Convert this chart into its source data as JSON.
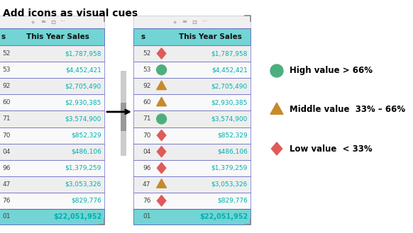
{
  "title": "Add icons as visual cues",
  "title_fontsize": 10,
  "bg_color": "#ffffff",
  "header_bg": "#72d4d4",
  "header_text": "This Year Sales",
  "col_label": "s",
  "row_nums_left": [
    "52",
    "53",
    "92",
    "60",
    "71",
    "70",
    "04",
    "96",
    "47",
    "76",
    "01"
  ],
  "row_nums_right": [
    "52",
    "53",
    "92",
    "60",
    "71",
    "70",
    "04",
    "96",
    "47",
    "76",
    "01"
  ],
  "values": [
    "$1,787,958",
    "$4,452,421",
    "$2,705,490",
    "$2,930,385",
    "$3,574,900",
    "$852,329",
    "$486,106",
    "$1,379,259",
    "$3,053,326",
    "$829,776",
    "$22,051,952"
  ],
  "icons": [
    "low",
    "high",
    "mid",
    "mid",
    "high",
    "low",
    "low",
    "low",
    "mid",
    "low",
    "none"
  ],
  "high_color": "#4caf7d",
  "mid_color": "#c8892a",
  "low_color": "#e05a5a",
  "cell_text_color": "#00b0b0",
  "total_text_color": "#00b0b0",
  "border_color": "#4444bb",
  "row_odd_bg": "#eeeeee",
  "row_even_bg": "#f9f9f9",
  "legend_high_label": "High value > 66%",
  "legend_mid_label": "Middle value  33% – 66%",
  "legend_low_label": "Low value  < 33%",
  "legend_fontsize": 8.5,
  "toolbar_bg": "#f0f0f0",
  "toolbar_border": "#cccccc",
  "bracket_color": "#888888"
}
